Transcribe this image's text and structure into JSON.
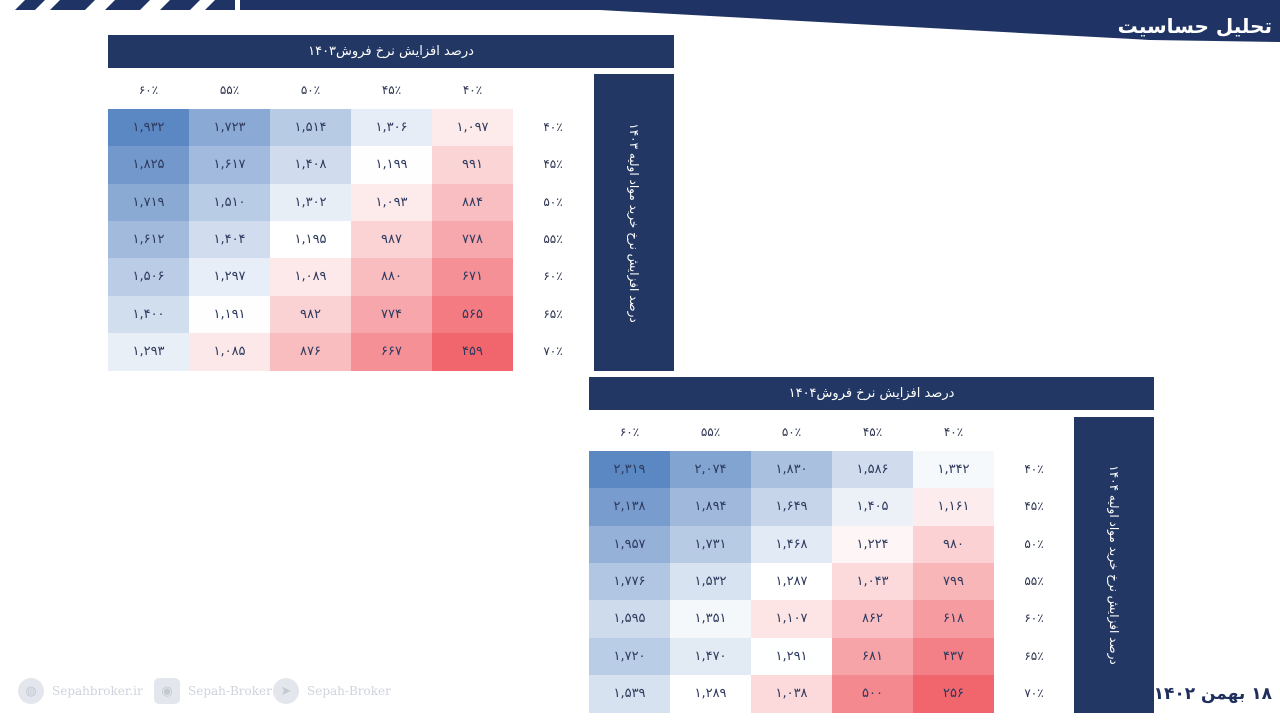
{
  "header": {
    "title": "تحلیل حساسیت",
    "band_color": "#1f3464"
  },
  "colors": {
    "blue": "#5b87c3",
    "white": "#ffffff",
    "red": "#f1656c",
    "header": "#223763"
  },
  "table_1403": {
    "title": "درصد افزایش نرخ فروش۱۴۰۳",
    "side_label": "درصد افزایش نرخ خرید مواد اولیه ۱۴۰۳",
    "columns": [
      "۶۰٪",
      "۵۵٪",
      "۵۰٪",
      "۴۵٪",
      "۴۰٪"
    ],
    "rows": [
      "۴۰٪",
      "۴۵٪",
      "۵۰٪",
      "۵۵٪",
      "۶۰٪",
      "۶۵٪",
      "۷۰٪"
    ],
    "values": [
      [
        1932,
        1723,
        1514,
        1306,
        1097
      ],
      [
        1825,
        1617,
        1408,
        1199,
        991
      ],
      [
        1719,
        1510,
        1302,
        1093,
        884
      ],
      [
        1612,
        1404,
        1195,
        987,
        778
      ],
      [
        1506,
        1297,
        1089,
        880,
        671
      ],
      [
        1400,
        1191,
        982,
        774,
        565
      ],
      [
        1293,
        1085,
        876,
        667,
        459
      ]
    ]
  },
  "table_1404": {
    "title": "درصد افزایش نرخ فروش۱۴۰۴",
    "side_label": "درصد افزایش نرخ خرید مواد اولیه ۱۴۰۴",
    "columns": [
      "۶۰٪",
      "۵۵٪",
      "۵۰٪",
      "۴۵٪",
      "۴۰٪"
    ],
    "rows": [
      "۴۰٪",
      "۴۵٪",
      "۵۰٪",
      "۵۵٪",
      "۶۰٪",
      "۶۵٪",
      "۷۰٪"
    ],
    "values": [
      [
        2319,
        2074,
        1830,
        1586,
        1342
      ],
      [
        2138,
        1894,
        1649,
        1405,
        1161
      ],
      [
        1957,
        1731,
        1468,
        1224,
        980
      ],
      [
        1776,
        1532,
        1287,
        1043,
        799
      ],
      [
        1595,
        1351,
        1107,
        862,
        618
      ],
      [
        1720,
        1470,
        1291,
        681,
        437
      ],
      [
        1539,
        1289,
        1038,
        500,
        256
      ]
    ]
  },
  "footer": {
    "date": "۱۸ بهمن ۱۴۰۲",
    "website": "Sepahbroker.ir",
    "instagram": "Sepah-Broker",
    "telegram": "Sepah-Broker",
    "icons": [
      "globe-icon",
      "instagram-icon",
      "telegram-icon"
    ]
  }
}
